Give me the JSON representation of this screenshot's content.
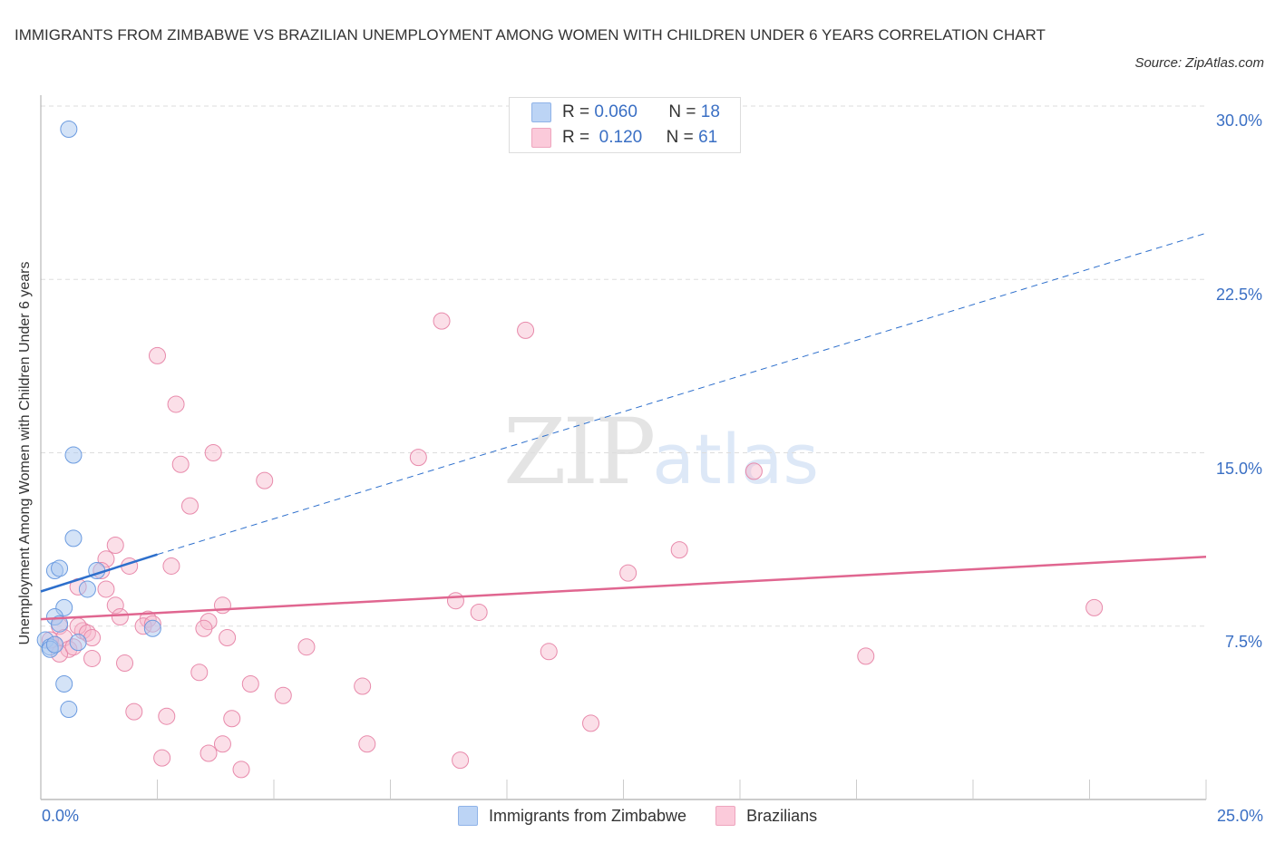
{
  "header": {
    "title": "IMMIGRANTS FROM ZIMBABWE VS BRAZILIAN UNEMPLOYMENT AMONG WOMEN WITH CHILDREN UNDER 6 YEARS CORRELATION CHART",
    "source": "Source: ZipAtlas.com"
  },
  "watermark": {
    "zip": "ZIP",
    "atlas": "atlas"
  },
  "stats_legend": {
    "rows": [
      {
        "r_label": "R =",
        "r_value": "0.060",
        "n_label": "N =",
        "n_value": "18",
        "color": "#aac8f0"
      },
      {
        "r_label": "R =",
        "r_value": "0.120",
        "n_label": "N =",
        "n_value": "61",
        "color": "#f7b8cd"
      }
    ]
  },
  "axes": {
    "x_min_label": "0.0%",
    "x_max_label": "25.0%",
    "y_ticks": [
      "30.0%",
      "22.5%",
      "15.0%",
      "7.5%"
    ],
    "y_label": "Unemployment Among Women with Children Under 6 years"
  },
  "legend": {
    "items": [
      {
        "label": "Immigrants from Zimbabwe",
        "color": "#aac8f0"
      },
      {
        "label": "Brazilians",
        "color": "#f7b8cd"
      }
    ]
  },
  "colors": {
    "blue_fill": "rgba(170,200,240,0.5)",
    "blue_stroke": "#6b9be0",
    "blue_line": "#2d6fcc",
    "pink_fill": "rgba(247,184,205,0.45)",
    "pink_stroke": "#e88aab",
    "pink_line": "#e06690",
    "grid": "#dddddd",
    "tick_text": "#3a6fc4"
  },
  "chart_data": {
    "type": "scatter",
    "title": "IMMIGRANTS FROM ZIMBABWE VS BRAZILIAN UNEMPLOYMENT AMONG WOMEN WITH CHILDREN UNDER 6 YEARS CORRELATION CHART",
    "xlabel": "",
    "ylabel": "Unemployment Among Women with Children Under 6 years",
    "xlim": [
      0,
      25
    ],
    "ylim": [
      0,
      30
    ],
    "y_ticks": [
      7.5,
      15.0,
      22.5,
      30.0
    ],
    "x_tick_labels": [
      "0.0%",
      "25.0%"
    ],
    "grid": true,
    "legend_position": "bottom",
    "series": [
      {
        "name": "Immigrants from Zimbabwe",
        "R": 0.06,
        "N": 18,
        "points": [
          [
            0.6,
            29.0
          ],
          [
            0.7,
            14.9
          ],
          [
            0.7,
            11.3
          ],
          [
            0.3,
            9.9
          ],
          [
            0.4,
            10.0
          ],
          [
            1.2,
            9.9
          ],
          [
            1.0,
            9.1
          ],
          [
            0.5,
            8.3
          ],
          [
            0.3,
            7.9
          ],
          [
            0.4,
            7.6
          ],
          [
            0.1,
            6.9
          ],
          [
            0.2,
            6.6
          ],
          [
            0.2,
            6.5
          ],
          [
            0.8,
            6.8
          ],
          [
            2.4,
            7.4
          ],
          [
            0.5,
            5.0
          ],
          [
            0.6,
            3.9
          ],
          [
            0.3,
            6.7
          ]
        ],
        "trend": {
          "x": [
            0,
            2.5
          ],
          "y": [
            9.0,
            10.6
          ],
          "extended_to": [
            25,
            24.5
          ]
        }
      },
      {
        "name": "Brazilians",
        "R": 0.12,
        "N": 61,
        "points": [
          [
            8.6,
            20.7
          ],
          [
            10.4,
            20.3
          ],
          [
            2.5,
            19.2
          ],
          [
            2.9,
            17.1
          ],
          [
            3.7,
            15.0
          ],
          [
            3.0,
            14.5
          ],
          [
            8.1,
            14.8
          ],
          [
            4.8,
            13.8
          ],
          [
            3.2,
            12.7
          ],
          [
            15.3,
            14.2
          ],
          [
            1.6,
            11.0
          ],
          [
            1.4,
            10.4
          ],
          [
            1.9,
            10.1
          ],
          [
            2.8,
            10.1
          ],
          [
            13.7,
            10.8
          ],
          [
            12.6,
            9.8
          ],
          [
            1.3,
            9.9
          ],
          [
            0.8,
            9.2
          ],
          [
            1.4,
            9.1
          ],
          [
            1.6,
            8.4
          ],
          [
            3.9,
            8.4
          ],
          [
            8.9,
            8.6
          ],
          [
            9.4,
            8.1
          ],
          [
            1.7,
            7.9
          ],
          [
            2.3,
            7.8
          ],
          [
            2.2,
            7.5
          ],
          [
            2.4,
            7.6
          ],
          [
            3.6,
            7.7
          ],
          [
            3.5,
            7.4
          ],
          [
            0.4,
            7.5
          ],
          [
            0.9,
            7.3
          ],
          [
            0.8,
            7.5
          ],
          [
            0.5,
            7.0
          ],
          [
            1.0,
            7.2
          ],
          [
            1.1,
            7.0
          ],
          [
            4.0,
            7.0
          ],
          [
            0.3,
            6.7
          ],
          [
            0.6,
            6.5
          ],
          [
            0.4,
            6.3
          ],
          [
            0.7,
            6.6
          ],
          [
            1.1,
            6.1
          ],
          [
            5.7,
            6.6
          ],
          [
            10.9,
            6.4
          ],
          [
            1.8,
            5.9
          ],
          [
            3.4,
            5.5
          ],
          [
            17.7,
            6.2
          ],
          [
            22.6,
            8.3
          ],
          [
            4.5,
            5.0
          ],
          [
            6.9,
            4.9
          ],
          [
            5.2,
            4.5
          ],
          [
            2.0,
            3.8
          ],
          [
            2.7,
            3.6
          ],
          [
            4.1,
            3.5
          ],
          [
            11.8,
            3.3
          ],
          [
            7.0,
            2.4
          ],
          [
            3.9,
            2.4
          ],
          [
            3.6,
            2.0
          ],
          [
            2.6,
            1.8
          ],
          [
            9.0,
            1.7
          ],
          [
            4.3,
            1.3
          ],
          [
            0.2,
            6.9
          ]
        ],
        "trend": {
          "x": [
            0,
            25
          ],
          "y": [
            7.8,
            10.5
          ]
        }
      }
    ]
  }
}
